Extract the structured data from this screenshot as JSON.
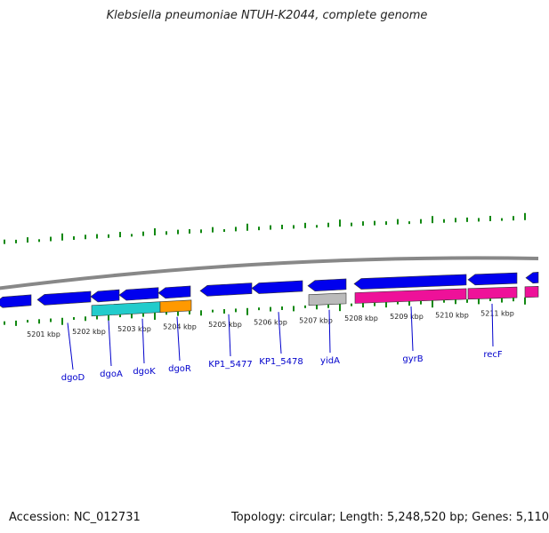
{
  "title": "Klebsiella pneumoniae NTUH-K2044, complete genome",
  "footer": {
    "accession": "Accession: NC_012731",
    "summary": "Topology: circular; Length: 5,248,520 bp; Genes: 5,110"
  },
  "colors": {
    "backbone": "#888888",
    "gene_blue": "#0000ee",
    "gene_cyan": "#22cccc",
    "gene_orange": "#ff9900",
    "gene_gray": "#bbbbbb",
    "gene_magenta": "#ee1199",
    "tick_green": "#118811",
    "label_blue": "#0000cc"
  },
  "kbp_labels": [
    "5201 kbp",
    "5202 kbp",
    "5203 kbp",
    "5204 kbp",
    "5205 kbp",
    "5206 kbp",
    "5207 kbp",
    "5208 kbp",
    "5209 kbp",
    "5210 kbp",
    "5211 kbp"
  ],
  "gene_labels": [
    "dgoD",
    "dgoA",
    "dgoK",
    "dgoR",
    "KP1_5477",
    "KP1_5478",
    "yidA",
    "gyrB",
    "recF"
  ]
}
